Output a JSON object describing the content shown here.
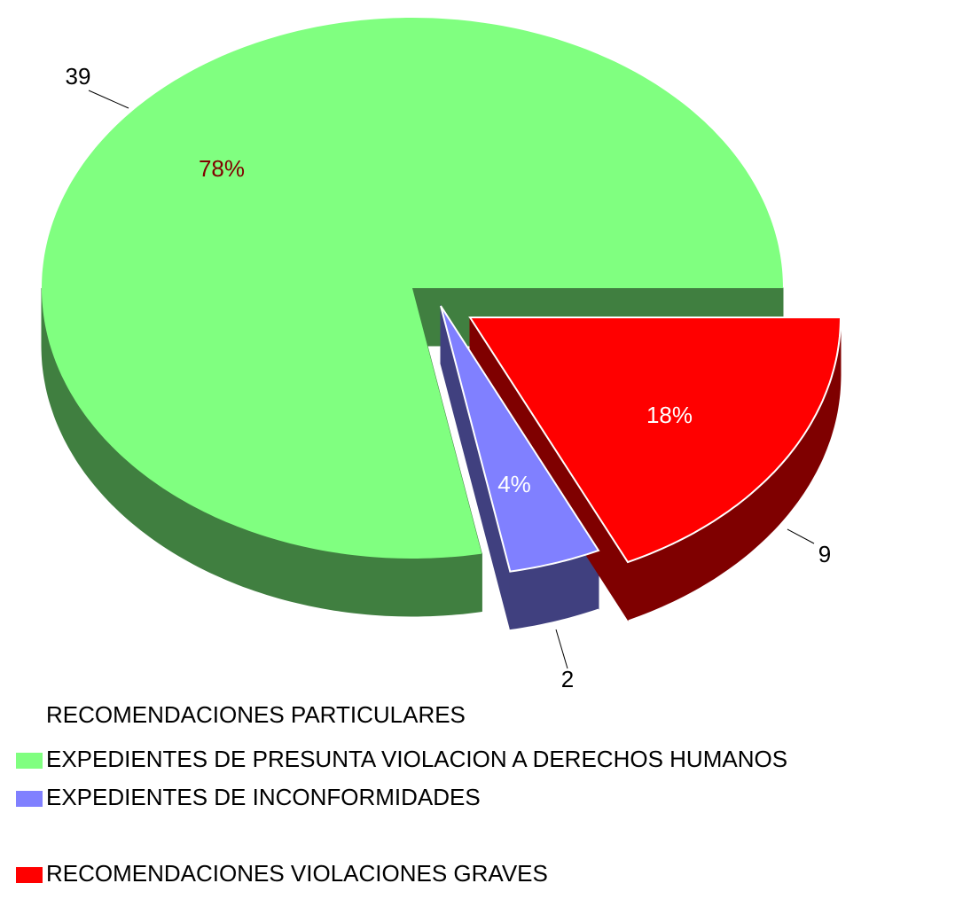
{
  "chart_data": {
    "type": "pie",
    "legend_title": "RECOMENDACIONES PARTICULARES",
    "categories": [
      "EXPEDIENTES DE PRESUNTA VIOLACION A DERECHOS HUMANOS",
      "EXPEDIENTES DE INCONFORMIDADES",
      "RECOMENDACIONES VIOLACIONES GRAVES"
    ],
    "values": [
      39,
      2,
      9
    ],
    "percent_labels": [
      "78%",
      "4%",
      "18%"
    ],
    "colors": [
      "#80ff80",
      "#8080ff",
      "#ff0000"
    ],
    "three_d": true,
    "legend": "bottom"
  }
}
